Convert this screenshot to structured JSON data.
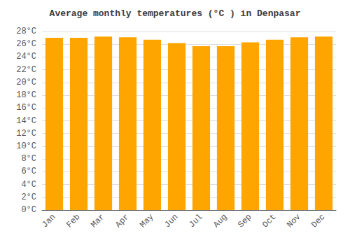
{
  "chart_data": {
    "type": "bar",
    "title": "Average monthly temperatures (°C ) in Denpasar",
    "categories": [
      "Jan",
      "Feb",
      "Mar",
      "Apr",
      "May",
      "Jun",
      "Jul",
      "Aug",
      "Sep",
      "Oct",
      "Nov",
      "Dec"
    ],
    "values": [
      27.0,
      27.0,
      27.2,
      27.1,
      26.7,
      26.2,
      25.7,
      25.7,
      26.3,
      26.7,
      27.1,
      27.2
    ],
    "color": "#FFA500",
    "ylim": [
      0,
      28
    ],
    "yticks": [
      {
        "value": 0,
        "label": "0°C"
      },
      {
        "value": 2,
        "label": "2°C"
      },
      {
        "value": 4,
        "label": "4°C"
      },
      {
        "value": 6,
        "label": "6°C"
      },
      {
        "value": 8,
        "label": "8°C"
      },
      {
        "value": 10,
        "label": "10°C"
      },
      {
        "value": 12,
        "label": "12°C"
      },
      {
        "value": 14,
        "label": "14°C"
      },
      {
        "value": 16,
        "label": "16°C"
      },
      {
        "value": 18,
        "label": "18°C"
      },
      {
        "value": 20,
        "label": "20°C"
      },
      {
        "value": 22,
        "label": "22°C"
      },
      {
        "value": 24,
        "label": "24°C"
      },
      {
        "value": 26,
        "label": "26°C"
      },
      {
        "value": 28,
        "label": "28°C"
      }
    ],
    "grid": true
  }
}
